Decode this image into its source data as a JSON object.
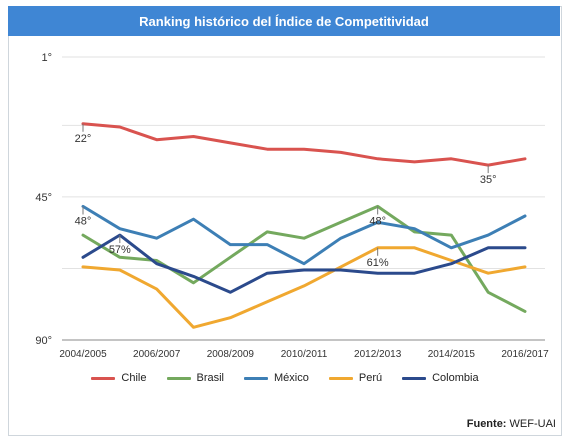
{
  "title_bar": {
    "title": "Ranking histórico del Índice de Competitividad"
  },
  "source": {
    "label": "Fuente:",
    "value": "WEF-UAI"
  },
  "chart_data": {
    "type": "line",
    "title": "Ranking histórico del Índice de Competitividad",
    "x": [
      "2004/2005",
      "2005/2006",
      "2006/2007",
      "2007/2008",
      "2008/2009",
      "2009/2010",
      "2010/2011",
      "2011/2012",
      "2012/2013",
      "2013/2014",
      "2014/2015",
      "2015/2016",
      "2016/2017"
    ],
    "x_tick_labels": [
      "2004/2005",
      "2006/2007",
      "2008/2009",
      "2010/2011",
      "2012/2013",
      "2014/2015",
      "2016/2017"
    ],
    "y_tick_labels": [
      "1°",
      "45°",
      "90°"
    ],
    "ylim": [
      1,
      90
    ],
    "y_inverted": true,
    "grid": true,
    "legend_position": "bottom",
    "series": [
      {
        "name": "Chile",
        "color": "#d9534f",
        "values": [
          22,
          23,
          27,
          26,
          28,
          30,
          30,
          31,
          33,
          34,
          33,
          35,
          33
        ]
      },
      {
        "name": "Brasil",
        "color": "#74a95e",
        "values": [
          57,
          64,
          65,
          72,
          64,
          56,
          58,
          53,
          48,
          56,
          57,
          75,
          81
        ]
      },
      {
        "name": "México",
        "color": "#3d7fb5",
        "values": [
          48,
          55,
          58,
          52,
          60,
          60,
          66,
          58,
          53,
          55,
          61,
          57,
          51
        ]
      },
      {
        "name": "Perú",
        "color": "#f0a830",
        "values": [
          67,
          68,
          74,
          86,
          83,
          78,
          73,
          67,
          61,
          61,
          65,
          69,
          67
        ]
      },
      {
        "name": "Colombia",
        "color": "#2b4a8c",
        "values": [
          64,
          57,
          66,
          70,
          75,
          69,
          68,
          68,
          69,
          69,
          66,
          61,
          61
        ]
      }
    ],
    "annotations": [
      {
        "series": "Chile",
        "index": 0,
        "text": "22°",
        "position": "below"
      },
      {
        "series": "Chile",
        "index": 11,
        "text": "35°",
        "position": "below"
      },
      {
        "series": "México",
        "index": 0,
        "text": "48°",
        "position": "below"
      },
      {
        "series": "Colombia",
        "index": 1,
        "text": "57%",
        "position": "below"
      },
      {
        "series": "Brasil",
        "index": 8,
        "text": "48°",
        "position": "below"
      },
      {
        "series": "Perú",
        "index": 8,
        "text": "61%",
        "position": "below"
      }
    ]
  }
}
